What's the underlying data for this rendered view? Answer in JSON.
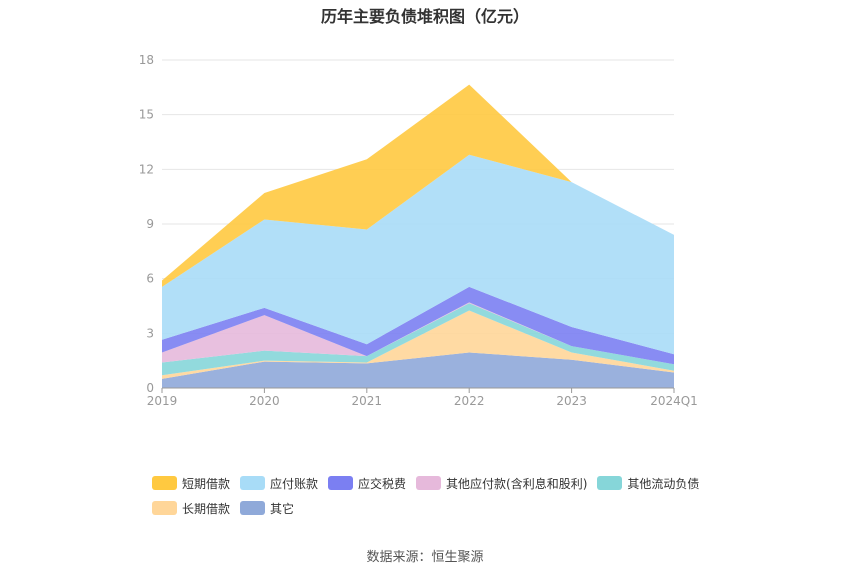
{
  "chart_data": {
    "type": "area",
    "title": "历年主要负债堆积图（亿元）",
    "categories": [
      "2019",
      "2020",
      "2021",
      "2022",
      "2023",
      "2024Q1"
    ],
    "ylim": [
      0,
      18
    ],
    "yticks": [
      0,
      3,
      6,
      9,
      12,
      15,
      18
    ],
    "grid": true,
    "legend_position": "bottom",
    "series": [
      {
        "name": "其它",
        "color": "#8fa9d9",
        "values": [
          0.5,
          1.45,
          1.35,
          1.95,
          1.55,
          0.85
        ]
      },
      {
        "name": "长期借款",
        "color": "#ffd699",
        "values": [
          0.2,
          0.05,
          0.05,
          2.3,
          0.4,
          0.1
        ]
      },
      {
        "name": "其他流动负债",
        "color": "#86d6d9",
        "values": [
          0.7,
          0.55,
          0.35,
          0.4,
          0.35,
          0.35
        ]
      },
      {
        "name": "其他应付款(含利息和股利)",
        "color": "#e6b9db",
        "values": [
          0.55,
          1.95,
          0.0,
          0.05,
          0.0,
          0.0
        ]
      },
      {
        "name": "应交税费",
        "color": "#7b7ff2",
        "values": [
          0.7,
          0.4,
          0.65,
          0.85,
          1.05,
          0.55
        ]
      },
      {
        "name": "应付账款",
        "color": "#a8dcf7",
        "values": [
          2.9,
          4.85,
          6.3,
          7.25,
          7.95,
          6.55
        ]
      },
      {
        "name": "短期借款",
        "color": "#ffc940",
        "values": [
          0.35,
          1.45,
          3.85,
          3.85,
          0.0,
          0.0
        ]
      }
    ]
  },
  "legend": {
    "rows": [
      [
        {
          "label": "短期借款",
          "color": "#ffc940"
        },
        {
          "label": "应付账款",
          "color": "#a8dcf7"
        },
        {
          "label": "应交税费",
          "color": "#7b7ff2"
        },
        {
          "label": "其他应付款(含利息和股利)",
          "color": "#e6b9db"
        },
        {
          "label": "其他流动负债",
          "color": "#86d6d9"
        }
      ],
      [
        {
          "label": "长期借款",
          "color": "#ffd699"
        },
        {
          "label": "其它",
          "color": "#8fa9d9"
        }
      ]
    ]
  },
  "footer": {
    "source": "数据来源：恒生聚源"
  }
}
